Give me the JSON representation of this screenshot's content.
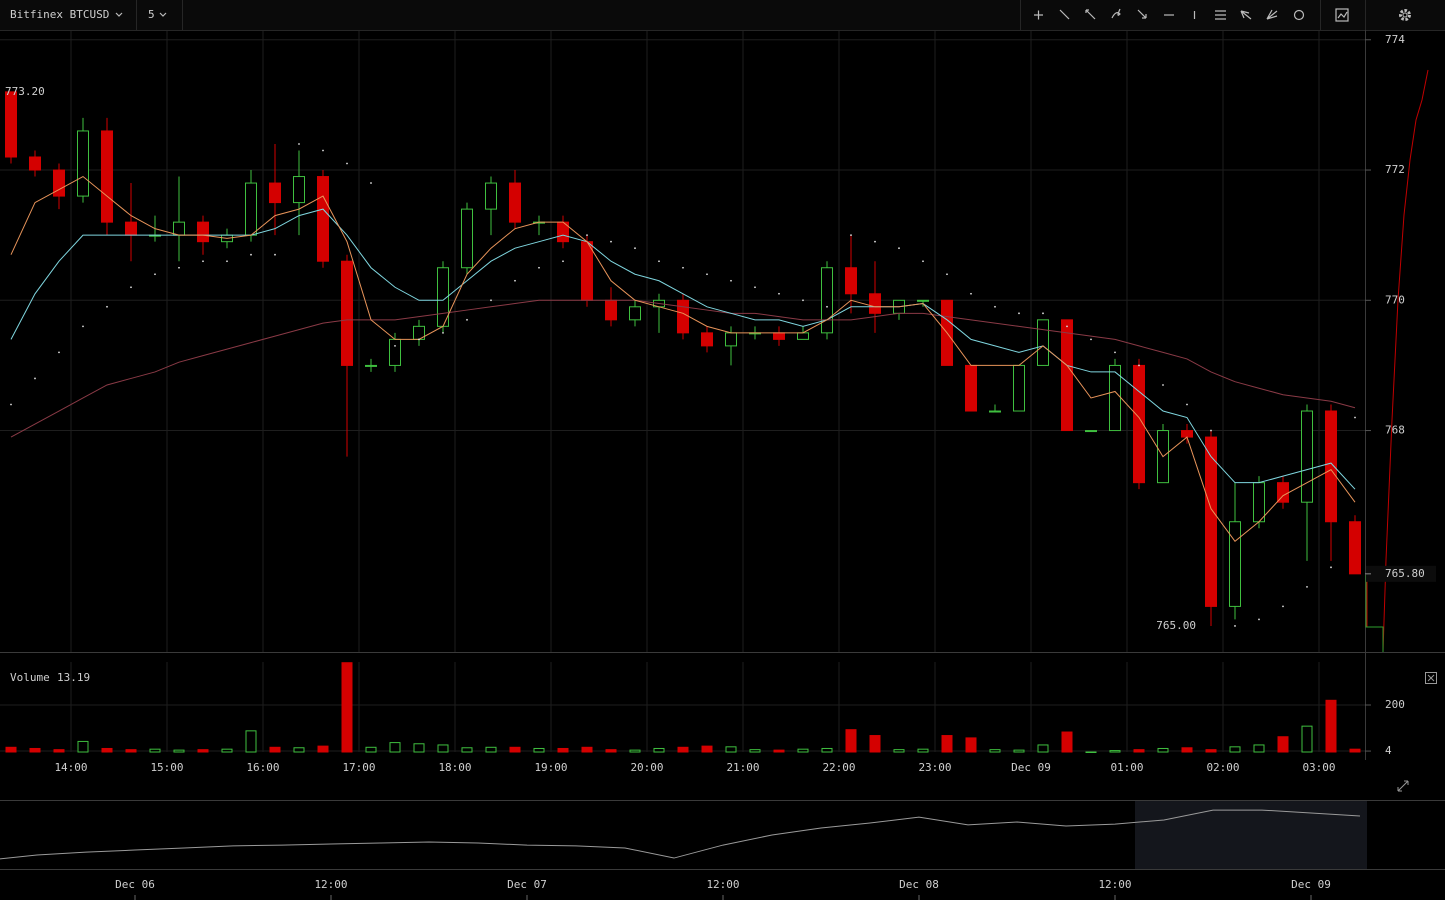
{
  "toolbar": {
    "symbol": "Bitfinex BTCUSD",
    "interval": "5"
  },
  "chart_data": [
    {
      "type": "candlestick",
      "ylim": [
        764.6,
        774.15
      ],
      "yticks": [
        768,
        770,
        772,
        774
      ],
      "xticks": [
        {
          "value": 2.5,
          "label": "14:00"
        },
        {
          "value": 6.5,
          "label": "15:00"
        },
        {
          "value": 10.5,
          "label": "16:00"
        },
        {
          "value": 14.5,
          "label": "17:00"
        },
        {
          "value": 18.5,
          "label": "18:00"
        },
        {
          "value": 22.5,
          "label": "19:00"
        },
        {
          "value": 26.5,
          "label": "20:00"
        },
        {
          "value": 30.5,
          "label": "21:00"
        },
        {
          "value": 34.5,
          "label": "22:00"
        },
        {
          "value": 38.5,
          "label": "23:00"
        },
        {
          "value": 42.5,
          "label": "Dec 09"
        },
        {
          "value": 46.5,
          "label": "01:00"
        },
        {
          "value": 50.5,
          "label": "02:00"
        },
        {
          "value": 54.5,
          "label": "03:00"
        }
      ],
      "grid": true,
      "up_color": "#3fbf3f",
      "down_color": "#d40000",
      "open": [
        773.2,
        772.2,
        772.0,
        771.6,
        772.6,
        771.2,
        771.0,
        771.0,
        771.2,
        770.9,
        771.0,
        771.8,
        771.5,
        771.9,
        770.6,
        769.0,
        769.0,
        769.4,
        769.6,
        770.5,
        771.4,
        771.8,
        771.2,
        771.2,
        770.9,
        770.0,
        769.7,
        769.9,
        770.0,
        769.5,
        769.3,
        769.5,
        769.5,
        769.4,
        769.5,
        770.5,
        770.1,
        769.8,
        770.0,
        770.0,
        769.0,
        768.3,
        768.3,
        769.0,
        769.7,
        768.0,
        768.0,
        769.0,
        767.2,
        768.0,
        767.9,
        765.3,
        766.6,
        767.2,
        766.9,
        768.3,
        766.6
      ],
      "high": [
        773.2,
        772.3,
        772.1,
        772.8,
        772.8,
        771.8,
        771.3,
        771.9,
        771.3,
        771.1,
        772.0,
        772.4,
        772.3,
        772.0,
        770.7,
        769.1,
        769.5,
        769.7,
        770.6,
        771.5,
        771.9,
        772.0,
        771.3,
        771.3,
        771.0,
        770.2,
        770.0,
        770.1,
        770.1,
        769.6,
        769.6,
        769.6,
        769.6,
        769.6,
        770.6,
        771.0,
        770.6,
        770.0,
        770.0,
        770.0,
        769.0,
        768.4,
        769.0,
        769.7,
        769.7,
        768.0,
        769.1,
        769.1,
        768.1,
        768.1,
        768.0,
        767.2,
        767.3,
        767.3,
        768.4,
        768.4,
        766.7
      ],
      "low": [
        772.1,
        771.9,
        771.4,
        771.5,
        771.0,
        770.6,
        770.9,
        770.6,
        770.7,
        770.8,
        770.9,
        771.0,
        771.0,
        770.5,
        767.6,
        768.9,
        768.9,
        769.3,
        769.5,
        770.4,
        771.0,
        771.1,
        771.0,
        770.8,
        769.9,
        769.6,
        769.6,
        769.5,
        769.4,
        769.2,
        769.0,
        769.4,
        769.3,
        769.4,
        769.4,
        769.8,
        769.5,
        769.7,
        769.9,
        769.0,
        768.3,
        768.3,
        768.3,
        769.0,
        768.0,
        768.0,
        768.0,
        767.1,
        767.2,
        767.8,
        765.0,
        765.1,
        766.5,
        766.8,
        766.0,
        766.0,
        765.8
      ],
      "close": [
        772.2,
        772.0,
        771.6,
        772.6,
        771.2,
        771.0,
        771.0,
        771.2,
        770.9,
        771.0,
        771.8,
        771.5,
        771.9,
        770.6,
        769.0,
        769.0,
        769.4,
        769.6,
        770.5,
        771.4,
        771.8,
        771.2,
        771.2,
        770.9,
        770.0,
        769.7,
        769.9,
        770.0,
        769.5,
        769.3,
        769.5,
        769.5,
        769.4,
        769.5,
        770.5,
        770.1,
        769.8,
        770.0,
        770.0,
        769.0,
        768.3,
        768.3,
        769.0,
        769.7,
        768.0,
        768.0,
        769.0,
        767.2,
        768.0,
        767.9,
        765.3,
        766.6,
        767.2,
        766.9,
        768.3,
        766.6,
        765.8
      ],
      "lines": [
        {
          "color": "#8a3a46",
          "style": "line",
          "values": [
            767.9,
            768.1,
            768.3,
            768.5,
            768.7,
            768.8,
            768.9,
            769.05,
            769.15,
            769.25,
            769.35,
            769.45,
            769.55,
            769.65,
            769.7,
            769.7,
            769.7,
            769.75,
            769.8,
            769.85,
            769.9,
            769.95,
            770.0,
            770.0,
            770.0,
            770.0,
            770.0,
            769.95,
            769.9,
            769.85,
            769.8,
            769.8,
            769.75,
            769.7,
            769.7,
            769.7,
            769.75,
            769.8,
            769.8,
            769.75,
            769.7,
            769.65,
            769.6,
            769.55,
            769.5,
            769.45,
            769.4,
            769.3,
            769.2,
            769.1,
            768.9,
            768.75,
            768.65,
            768.55,
            768.5,
            768.45,
            768.35
          ]
        },
        {
          "color": "#7fd6df",
          "style": "line",
          "values": [
            769.4,
            770.1,
            770.6,
            771.0,
            771.0,
            771.0,
            771.0,
            771.0,
            771.0,
            771.0,
            771.0,
            771.1,
            771.3,
            771.4,
            771.0,
            770.5,
            770.2,
            770.0,
            770.0,
            770.3,
            770.6,
            770.8,
            770.9,
            771.0,
            770.9,
            770.6,
            770.4,
            770.3,
            770.1,
            769.9,
            769.8,
            769.7,
            769.7,
            769.6,
            769.7,
            769.9,
            769.9,
            769.9,
            769.95,
            769.7,
            769.4,
            769.3,
            769.2,
            769.3,
            769.0,
            768.9,
            768.9,
            768.6,
            768.3,
            768.2,
            767.6,
            767.2,
            767.2,
            767.3,
            767.4,
            767.5,
            767.1
          ]
        },
        {
          "color": "#e8945a",
          "style": "line",
          "values": [
            770.7,
            771.5,
            771.7,
            771.9,
            771.6,
            771.3,
            771.1,
            771.0,
            771.0,
            770.95,
            771.0,
            771.3,
            771.4,
            771.6,
            770.9,
            769.7,
            769.4,
            769.4,
            769.6,
            770.4,
            770.8,
            771.1,
            771.2,
            771.2,
            770.9,
            770.3,
            770.0,
            769.9,
            769.8,
            769.6,
            769.5,
            769.5,
            769.5,
            769.5,
            769.7,
            770.0,
            769.9,
            769.9,
            769.95,
            769.5,
            769.0,
            769.0,
            769.0,
            769.3,
            769.0,
            768.5,
            768.6,
            768.2,
            767.6,
            767.9,
            766.8,
            766.3,
            766.6,
            767.0,
            767.2,
            767.4,
            766.9
          ]
        },
        {
          "color": "#dddddd",
          "style": "dots",
          "values": [
            768.4,
            768.8,
            769.2,
            769.6,
            769.9,
            770.2,
            770.4,
            770.5,
            770.6,
            770.6,
            770.7,
            770.7,
            772.4,
            772.3,
            772.1,
            771.8,
            769.3,
            769.4,
            769.5,
            769.7,
            770.0,
            770.3,
            770.5,
            770.6,
            771.0,
            770.9,
            770.8,
            770.6,
            770.5,
            770.4,
            770.3,
            770.2,
            770.1,
            770.0,
            769.9,
            771.0,
            770.9,
            770.8,
            770.6,
            770.4,
            770.1,
            769.9,
            769.8,
            769.8,
            769.6,
            769.4,
            769.2,
            769.0,
            768.7,
            768.4,
            768.0,
            765.0,
            765.1,
            765.3,
            765.6,
            765.9,
            768.2
          ]
        }
      ],
      "high_label": {
        "value": 773.2,
        "label": "773.20"
      },
      "low_label": {
        "value": 765.0,
        "label": "765.00"
      },
      "last_label": {
        "value": 765.8,
        "label": "765.80"
      }
    },
    {
      "type": "bar",
      "title": "Volume",
      "last_value": 13.19,
      "ylim": [
        0,
        383
      ],
      "yticks": [
        4,
        200
      ],
      "values": [
        20,
        15,
        10,
        45,
        15,
        10,
        12,
        8,
        10,
        12,
        90,
        20,
        18,
        25,
        380,
        20,
        40,
        35,
        30,
        18,
        20,
        20,
        15,
        15,
        20,
        10,
        8,
        15,
        20,
        25,
        22,
        10,
        8,
        12,
        15,
        95,
        70,
        10,
        12,
        70,
        60,
        10,
        8,
        30,
        85,
        0,
        6,
        10,
        15,
        18,
        10,
        22,
        30,
        65,
        110,
        220,
        12
      ]
    },
    {
      "type": "line",
      "color": "#9a9a9a",
      "ylim": [
        735,
        776
      ],
      "xticks": [
        {
          "value": 3,
          "label": "Dec 06"
        },
        {
          "value": 7,
          "label": "12:00"
        },
        {
          "value": 11,
          "label": "Dec 07"
        },
        {
          "value": 15,
          "label": "12:00"
        },
        {
          "value": 19,
          "label": "Dec 08"
        },
        {
          "value": 23,
          "label": "12:00"
        },
        {
          "value": 27,
          "label": "Dec 09"
        }
      ],
      "values": [
        740.8,
        743.8,
        745.5,
        746.7,
        747.9,
        749.1,
        749.6,
        750.2,
        750.8,
        751.4,
        750.8,
        749.6,
        749.1,
        747.9,
        742.0,
        749.6,
        755.5,
        759.6,
        762.5,
        766.0,
        761.4,
        763.1,
        760.8,
        761.9,
        764.3,
        770.1,
        770.1,
        768.4,
        766.6
      ]
    }
  ]
}
